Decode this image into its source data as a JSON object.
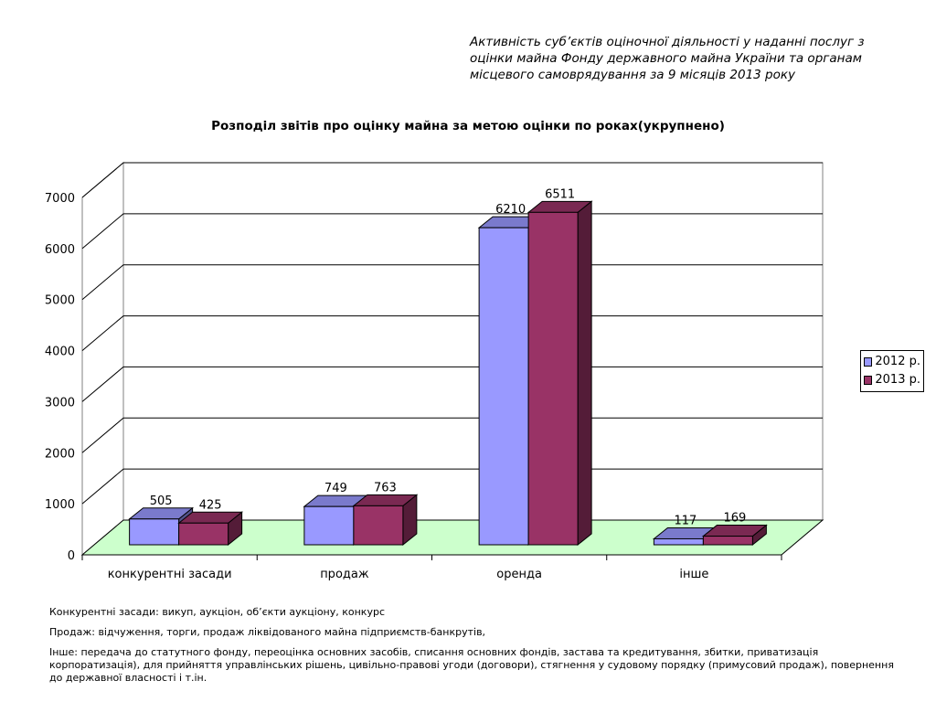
{
  "header": {
    "lines": [
      "Активність суб’єктів оціночної діяльності у наданні послуг з",
      "оцінки майна Фонду державного майна України та органам",
      "місцевого самоврядування за 9 місяців 2013 року"
    ]
  },
  "notes": {
    "competitive": "Конкурентні засади: викуп, аукціон, об’єкти аукціону, конкурс",
    "sale": "Продаж: відчуження, торги, продаж ліквідованого майна підприємств-банкрутів,",
    "other": "Інше: передача до статутного фонду, переоцінка основних засобів, списання основних фондів, застава та кредитування, збитки, приватизація корпоратизація), для прийняття управлінських рішень, цивільно-правові угоди (договори), стягнення у судовому порядку (примусовий продаж), повернення до державної власності  і т.ін."
  },
  "chart_data": {
    "type": "bar",
    "title": "Розподіл звітів про оцінку майна за метою оцінки по роках(укрупнено)",
    "xlabel": "",
    "ylabel": "",
    "categories": [
      "конкурентні засади",
      "продаж",
      "оренда",
      "інше"
    ],
    "series": [
      {
        "name": "2012 р.",
        "values": [
          505,
          749,
          6210,
          117
        ],
        "color": "#9999ff"
      },
      {
        "name": "2013 р.",
        "values": [
          425,
          763,
          6511,
          169
        ],
        "color": "#993366"
      }
    ],
    "ylim": [
      0,
      7000
    ],
    "yticks": [
      0,
      1000,
      2000,
      3000,
      4000,
      5000,
      6000,
      7000
    ],
    "grid": true,
    "legend": "right",
    "floor_color": "#ccffcc"
  }
}
